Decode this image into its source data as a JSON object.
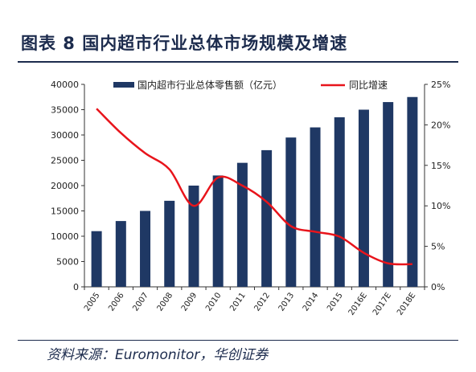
{
  "header": {
    "title": "图表 8  国内超市行业总体市场规模及增速"
  },
  "footer": {
    "source": "资料来源：Euromonitor，华创证券"
  },
  "colors": {
    "bar": "#1f3864",
    "line": "#e8141b",
    "axis": "#333333",
    "text_dark": "#1c2b4d"
  },
  "chart_data": {
    "type": "bar",
    "categories": [
      "2005",
      "2006",
      "2007",
      "2008",
      "2009",
      "2010",
      "2011",
      "2012",
      "2013",
      "2014",
      "2015",
      "2016E",
      "2017E",
      "2018E"
    ],
    "series": [
      {
        "name": "国内超市行业总体零售额（亿元）",
        "type": "bar",
        "axis": "left",
        "values": [
          11000,
          13000,
          15000,
          17000,
          20000,
          22000,
          24500,
          27000,
          29500,
          31500,
          33500,
          35000,
          36500,
          37500
        ]
      },
      {
        "name": "同比增速",
        "type": "line",
        "axis": "right",
        "values": [
          22.0,
          19.0,
          16.5,
          14.5,
          10.0,
          13.5,
          12.5,
          10.5,
          7.5,
          6.8,
          6.2,
          4.2,
          2.9,
          2.8
        ]
      }
    ],
    "left_axis": {
      "ylim": [
        0,
        40000
      ],
      "ticks": [
        "0",
        "5000",
        "10000",
        "15000",
        "20000",
        "25000",
        "30000",
        "35000",
        "40000"
      ]
    },
    "right_axis": {
      "ylim": [
        0,
        25
      ],
      "ticks": [
        "0%",
        "5%",
        "10%",
        "15%",
        "20%",
        "25%"
      ]
    },
    "legend": "top",
    "grid": false
  }
}
